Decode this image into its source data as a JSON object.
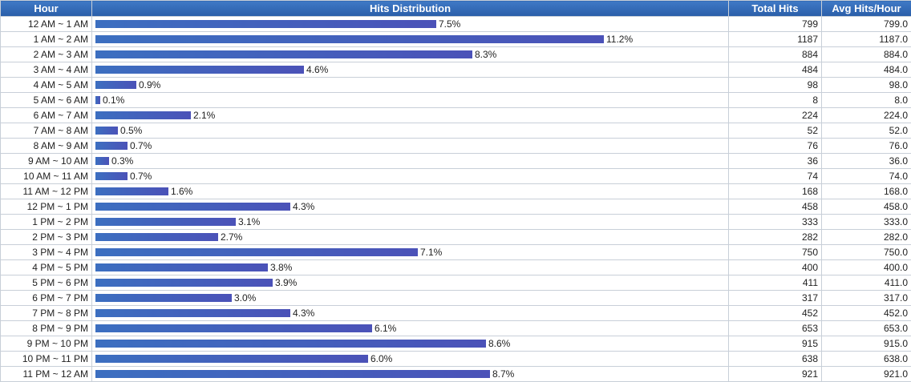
{
  "header": {
    "hour": "Hour",
    "distribution": "Hits Distribution",
    "total": "Total Hits",
    "avg": "Avg Hits/Hour"
  },
  "colors": {
    "header_bg": "#2f68b4",
    "bar_start": "#3c6fc0",
    "bar_end": "#4b52b8"
  },
  "chart_data": {
    "type": "bar",
    "orientation": "horizontal",
    "value_max": 11.2,
    "rows": [
      {
        "hour": "12 AM ~ 1 AM",
        "pct": 7.5,
        "pct_label": "7.5%",
        "total": "799",
        "avg": "799.0"
      },
      {
        "hour": "1 AM ~ 2 AM",
        "pct": 11.2,
        "pct_label": "11.2%",
        "total": "1187",
        "avg": "1187.0"
      },
      {
        "hour": "2 AM ~ 3 AM",
        "pct": 8.3,
        "pct_label": "8.3%",
        "total": "884",
        "avg": "884.0"
      },
      {
        "hour": "3 AM ~ 4 AM",
        "pct": 4.6,
        "pct_label": "4.6%",
        "total": "484",
        "avg": "484.0"
      },
      {
        "hour": "4 AM ~ 5 AM",
        "pct": 0.9,
        "pct_label": "0.9%",
        "total": "98",
        "avg": "98.0"
      },
      {
        "hour": "5 AM ~ 6 AM",
        "pct": 0.1,
        "pct_label": "0.1%",
        "total": "8",
        "avg": "8.0"
      },
      {
        "hour": "6 AM ~ 7 AM",
        "pct": 2.1,
        "pct_label": "2.1%",
        "total": "224",
        "avg": "224.0"
      },
      {
        "hour": "7 AM ~ 8 AM",
        "pct": 0.5,
        "pct_label": "0.5%",
        "total": "52",
        "avg": "52.0"
      },
      {
        "hour": "8 AM ~ 9 AM",
        "pct": 0.7,
        "pct_label": "0.7%",
        "total": "76",
        "avg": "76.0"
      },
      {
        "hour": "9 AM ~ 10 AM",
        "pct": 0.3,
        "pct_label": "0.3%",
        "total": "36",
        "avg": "36.0"
      },
      {
        "hour": "10 AM ~ 11 AM",
        "pct": 0.7,
        "pct_label": "0.7%",
        "total": "74",
        "avg": "74.0"
      },
      {
        "hour": "11 AM ~ 12 PM",
        "pct": 1.6,
        "pct_label": "1.6%",
        "total": "168",
        "avg": "168.0"
      },
      {
        "hour": "12 PM ~ 1 PM",
        "pct": 4.3,
        "pct_label": "4.3%",
        "total": "458",
        "avg": "458.0"
      },
      {
        "hour": "1 PM ~ 2 PM",
        "pct": 3.1,
        "pct_label": "3.1%",
        "total": "333",
        "avg": "333.0"
      },
      {
        "hour": "2 PM ~ 3 PM",
        "pct": 2.7,
        "pct_label": "2.7%",
        "total": "282",
        "avg": "282.0"
      },
      {
        "hour": "3 PM ~ 4 PM",
        "pct": 7.1,
        "pct_label": "7.1%",
        "total": "750",
        "avg": "750.0"
      },
      {
        "hour": "4 PM ~ 5 PM",
        "pct": 3.8,
        "pct_label": "3.8%",
        "total": "400",
        "avg": "400.0"
      },
      {
        "hour": "5 PM ~ 6 PM",
        "pct": 3.9,
        "pct_label": "3.9%",
        "total": "411",
        "avg": "411.0"
      },
      {
        "hour": "6 PM ~ 7 PM",
        "pct": 3.0,
        "pct_label": "3.0%",
        "total": "317",
        "avg": "317.0"
      },
      {
        "hour": "7 PM ~ 8 PM",
        "pct": 4.3,
        "pct_label": "4.3%",
        "total": "452",
        "avg": "452.0"
      },
      {
        "hour": "8 PM ~ 9 PM",
        "pct": 6.1,
        "pct_label": "6.1%",
        "total": "653",
        "avg": "653.0"
      },
      {
        "hour": "9 PM ~ 10 PM",
        "pct": 8.6,
        "pct_label": "8.6%",
        "total": "915",
        "avg": "915.0"
      },
      {
        "hour": "10 PM ~ 11 PM",
        "pct": 6.0,
        "pct_label": "6.0%",
        "total": "638",
        "avg": "638.0"
      },
      {
        "hour": "11 PM ~ 12 AM",
        "pct": 8.7,
        "pct_label": "8.7%",
        "total": "921",
        "avg": "921.0"
      }
    ]
  }
}
